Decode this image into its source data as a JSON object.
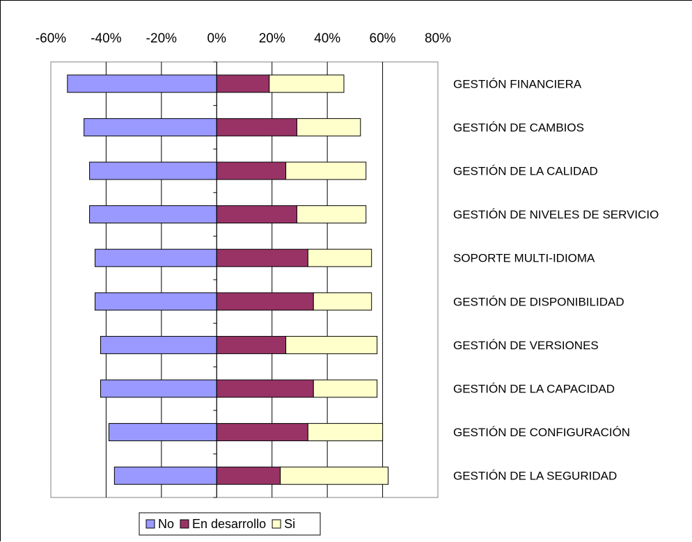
{
  "chart_data": {
    "type": "bar",
    "orientation": "horizontal",
    "stacked": true,
    "xlim": [
      -60,
      80
    ],
    "xticks": [
      "-60%",
      "-40%",
      "-20%",
      "0%",
      "20%",
      "40%",
      "60%",
      "80%"
    ],
    "title": "",
    "xlabel": "",
    "ylabel": "",
    "grid": "vertical",
    "legend_position": "bottom",
    "categories": [
      "GESTIÓN FINANCIERA",
      "GESTIÓN DE CAMBIOS",
      "GESTIÓN DE LA CALIDAD",
      "GESTIÓN DE NIVELES DE SERVICIO",
      "SOPORTE MULTI-IDIOMA",
      "GESTIÓN DE DISPONIBILIDAD",
      "GESTIÓN DE VERSIONES",
      "GESTIÓN DE LA CAPACIDAD",
      "GESTIÓN DE CONFIGURACIÓN",
      "GESTIÓN DE LA SEGURIDAD"
    ],
    "series": [
      {
        "name": "No",
        "color": "#9999ff",
        "values": [
          -54,
          -48,
          -46,
          -46,
          -44,
          -44,
          -42,
          -42,
          -39,
          -37
        ]
      },
      {
        "name": "En desarrollo",
        "color": "#993366",
        "values": [
          19,
          29,
          25,
          29,
          33,
          35,
          25,
          35,
          33,
          23
        ]
      },
      {
        "name": "Si",
        "color": "#ffffcc",
        "values": [
          27,
          23,
          29,
          25,
          23,
          21,
          33,
          23,
          27,
          39
        ]
      }
    ]
  }
}
